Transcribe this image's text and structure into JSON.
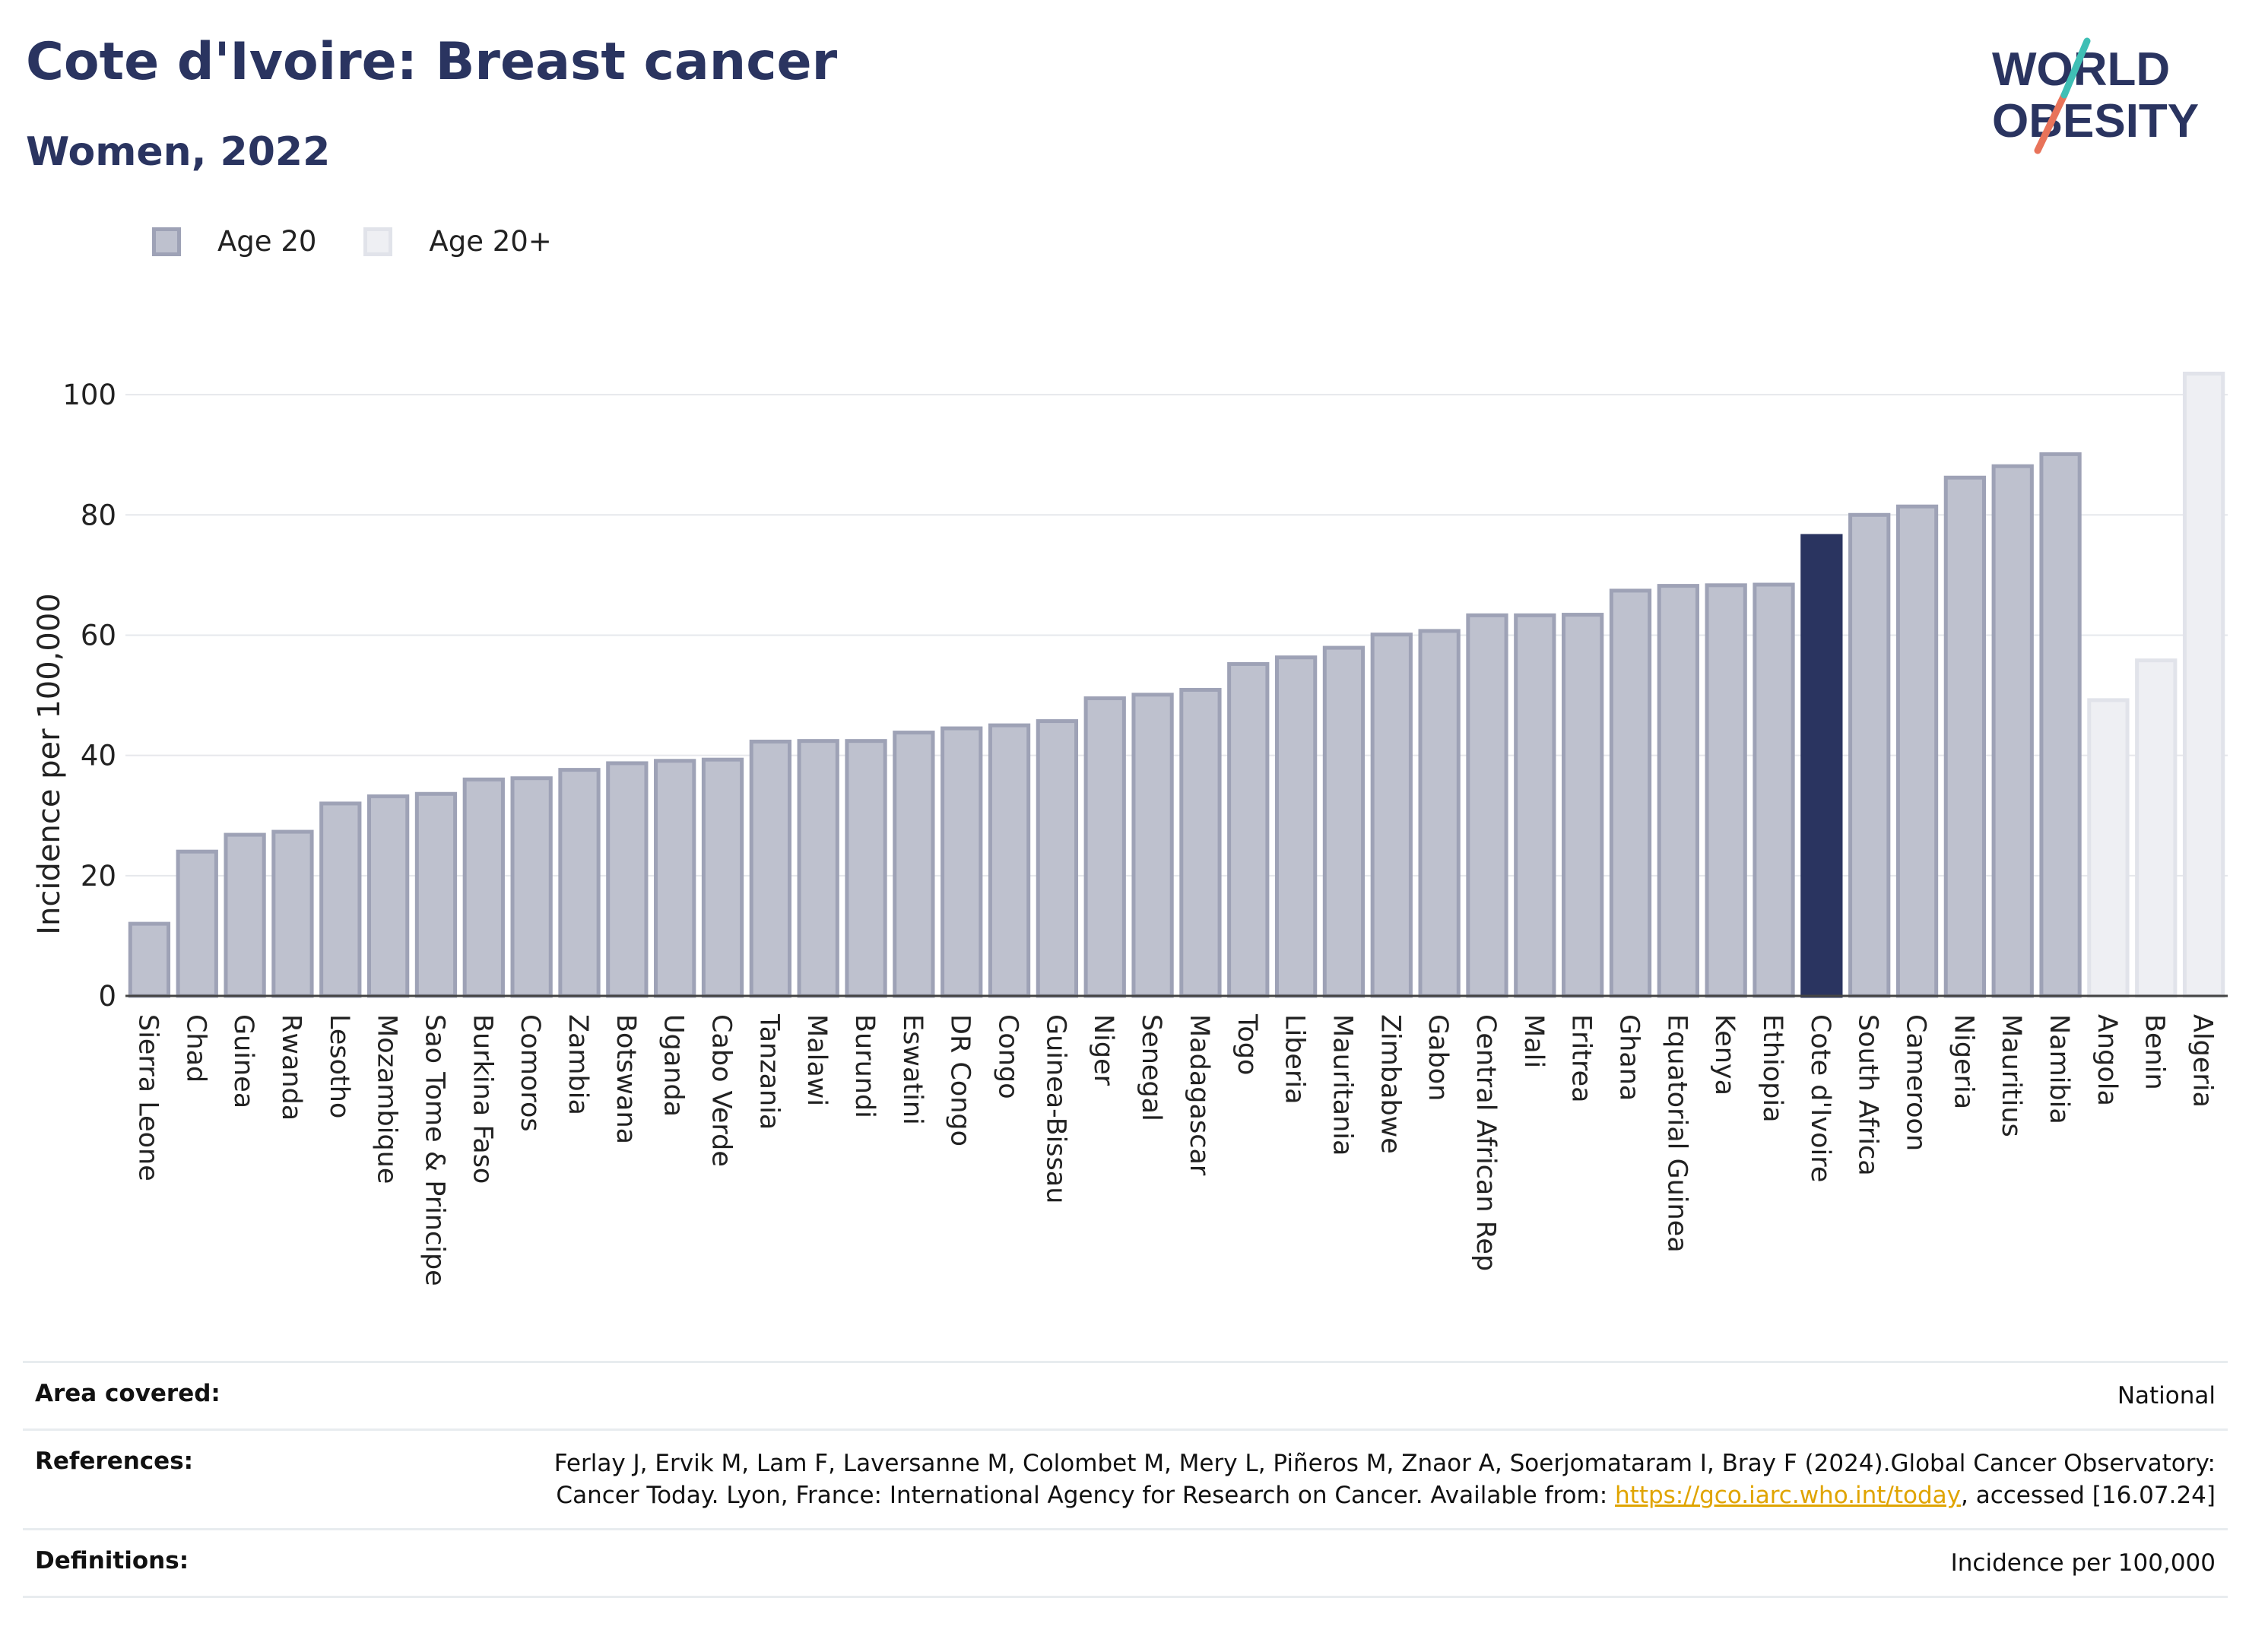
{
  "header": {
    "title": "Cote d'Ivoire: Breast cancer",
    "subtitle": "Women, 2022"
  },
  "logo": {
    "line1": "WORLD",
    "line2": "OBESITY"
  },
  "legend": {
    "items": [
      {
        "label": "Age 20",
        "fill": "#bec1ce",
        "stroke": "#9ea2b6"
      },
      {
        "label": "Age 20+",
        "fill": "#eeeff3",
        "stroke": "#e1e3ea"
      }
    ]
  },
  "chart_data": {
    "type": "bar",
    "ylabel": "Incidence per 100,000",
    "xlabel": "",
    "ylim": [
      0,
      110
    ],
    "yticks": [
      0,
      20,
      40,
      60,
      80,
      100
    ],
    "grid": true,
    "legend_position": "top-left",
    "highlight": "Cote d'Ivoire",
    "colors": {
      "age20": "#bec1ce",
      "age20plus": "#eeeff3",
      "highlight": "#2a3460"
    },
    "categories": [
      "Sierra Leone",
      "Chad",
      "Guinea",
      "Rwanda",
      "Lesotho",
      "Mozambique",
      "Sao Tome & Principe",
      "Burkina Faso",
      "Comoros",
      "Zambia",
      "Botswana",
      "Uganda",
      "Cabo Verde",
      "Tanzania",
      "Malawi",
      "Burundi",
      "Eswatini",
      "DR Congo",
      "Congo",
      "Guinea-Bissau",
      "Niger",
      "Senegal",
      "Madagascar",
      "Togo",
      "Liberia",
      "Mauritania",
      "Zimbabwe",
      "Gabon",
      "Central African Rep",
      "Mali",
      "Eritrea",
      "Ghana",
      "Equatorial Guinea",
      "Kenya",
      "Ethiopia",
      "Cote d'Ivoire",
      "South Africa",
      "Cameroon",
      "Nigeria",
      "Mauritius",
      "Namibia",
      "Angola",
      "Benin",
      "Algeria"
    ],
    "values": [
      12,
      24,
      26.8,
      27.3,
      32,
      33.2,
      33.6,
      36,
      36.2,
      37.6,
      38.7,
      39.1,
      39.3,
      42.3,
      42.4,
      42.4,
      43.8,
      44.5,
      45,
      45.7,
      49.5,
      50.1,
      50.9,
      55.2,
      56.3,
      57.9,
      60.1,
      60.7,
      63.3,
      63.3,
      63.4,
      67.4,
      68.2,
      68.3,
      68.4,
      76.5,
      80,
      81.4,
      86.2,
      88.1,
      90.1,
      49.2,
      55.8,
      103.5
    ],
    "groups": [
      "Age 20",
      "Age 20",
      "Age 20",
      "Age 20",
      "Age 20",
      "Age 20",
      "Age 20",
      "Age 20",
      "Age 20",
      "Age 20",
      "Age 20",
      "Age 20",
      "Age 20",
      "Age 20",
      "Age 20",
      "Age 20",
      "Age 20",
      "Age 20",
      "Age 20",
      "Age 20",
      "Age 20",
      "Age 20",
      "Age 20",
      "Age 20",
      "Age 20",
      "Age 20",
      "Age 20",
      "Age 20",
      "Age 20",
      "Age 20",
      "Age 20",
      "Age 20",
      "Age 20",
      "Age 20",
      "Age 20",
      "Age 20",
      "Age 20",
      "Age 20",
      "Age 20",
      "Age 20",
      "Age 20",
      "Age 20+",
      "Age 20+",
      "Age 20+"
    ]
  },
  "footer": {
    "area_label": "Area covered:",
    "area_value": "National",
    "references_label": "References:",
    "references_text": "Ferlay J, Ervik M, Lam F, Laversanne M, Colombet M, Mery L, Piñeros M, Znaor A, Soerjomataram I, Bray F (2024).Global Cancer Observatory: Cancer Today. Lyon, France: International Agency for Research on Cancer. Available from: ",
    "references_link": "https://gco.iarc.who.int/today",
    "references_suffix": ", accessed [16.07.24]",
    "definitions_label": "Definitions:",
    "definitions_value": "Incidence per 100,000"
  }
}
